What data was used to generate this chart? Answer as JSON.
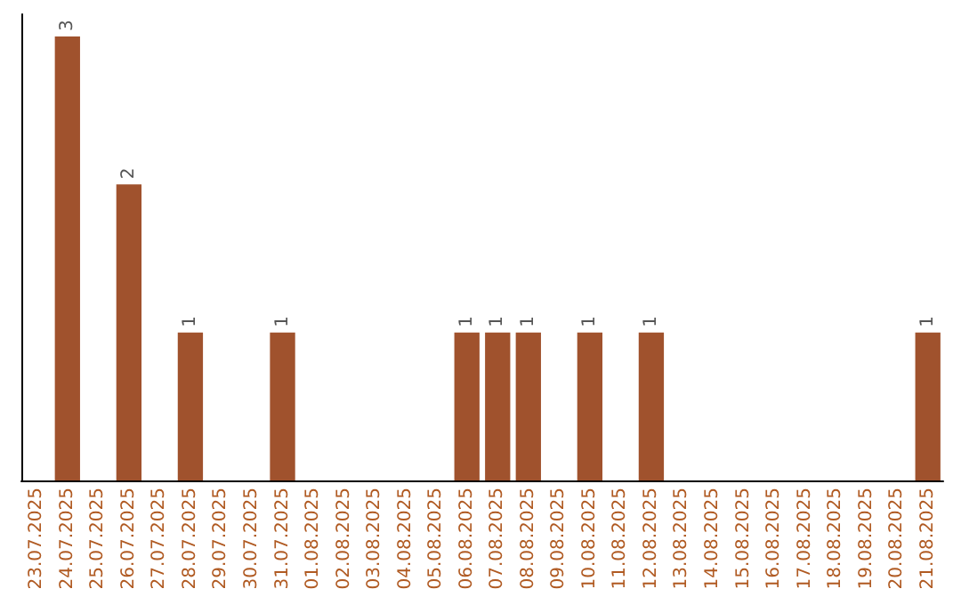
{
  "chart_data": {
    "type": "bar",
    "categories": [
      "23.07.2025",
      "24.07.2025",
      "25.07.2025",
      "26.07.2025",
      "27.07.2025",
      "28.07.2025",
      "29.07.2025",
      "30.07.2025",
      "31.07.2025",
      "01.08.2025",
      "02.08.2025",
      "03.08.2025",
      "04.08.2025",
      "05.08.2025",
      "06.08.2025",
      "07.08.2025",
      "08.08.2025",
      "09.08.2025",
      "10.08.2025",
      "11.08.2025",
      "12.08.2025",
      "13.08.2025",
      "14.08.2025",
      "15.08.2025",
      "16.08.2025",
      "17.08.2025",
      "18.08.2025",
      "19.08.2025",
      "20.08.2025",
      "21.08.2025"
    ],
    "values": [
      0,
      3,
      0,
      2,
      0,
      1,
      0,
      0,
      1,
      0,
      0,
      0,
      0,
      0,
      1,
      1,
      1,
      0,
      1,
      0,
      1,
      0,
      0,
      0,
      0,
      0,
      0,
      0,
      0,
      1
    ],
    "value_labels": [
      null,
      "3",
      null,
      "2",
      null,
      "1",
      null,
      null,
      "1",
      null,
      null,
      null,
      null,
      null,
      "1",
      "1",
      "1",
      null,
      "1",
      null,
      "1",
      null,
      null,
      null,
      null,
      null,
      null,
      null,
      null,
      "1"
    ],
    "color": "#a0522d"
  }
}
